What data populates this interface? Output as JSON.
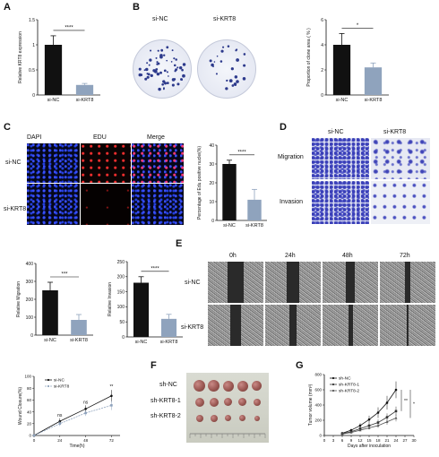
{
  "panel_letters": {
    "a": "A",
    "b": "B",
    "c": "C",
    "d": "D",
    "e": "E",
    "f": "F",
    "g": "G"
  },
  "groups": {
    "nc": "si-NC",
    "kd": "si-KRT8",
    "sh_nc": "sh-NC",
    "sh_1": "sh-KRT8-1",
    "sh_2": "sh-KRT8-2"
  },
  "panel_c": {
    "col_dapi": "DAPI",
    "col_edu": "EDU",
    "col_merge": "Merge"
  },
  "panel_d": {
    "row_migration": "Migration",
    "row_invasion": "Invasion"
  },
  "panel_e": {
    "t0": "0h",
    "t24": "24h",
    "t48": "48h",
    "t72": "72h"
  },
  "colors": {
    "nc": "#111111",
    "kd": "#8fa3bd",
    "dapi": "#2a44ff",
    "edu": "#ff2a2a"
  },
  "chart_data": [
    {
      "id": "A",
      "type": "bar",
      "categories": [
        "si-NC",
        "si-KRT8"
      ],
      "values": [
        1.0,
        0.2
      ],
      "errors": [
        0.18,
        0.03
      ],
      "ylabel": "Relative KRT8 expression",
      "ylim": [
        0,
        1.5
      ],
      "yticks": [
        0.0,
        0.5,
        1.0,
        1.5
      ],
      "significance": "****"
    },
    {
      "id": "B",
      "type": "bar",
      "categories": [
        "si-NC",
        "si-KRT8"
      ],
      "values": [
        4.0,
        2.2
      ],
      "errors": [
        0.9,
        0.35
      ],
      "ylabel": "Proportion of clone area ( % )",
      "ylim": [
        0,
        6
      ],
      "yticks": [
        0,
        2,
        4,
        6
      ],
      "significance": "*"
    },
    {
      "id": "C",
      "type": "bar",
      "categories": [
        "si-NC",
        "si-KRT8"
      ],
      "values": [
        30,
        11
      ],
      "errors": [
        2,
        5.5
      ],
      "ylabel": "Percentage of Edu positive nuclei(%)",
      "ylim": [
        0,
        40
      ],
      "yticks": [
        0,
        10,
        20,
        30,
        40
      ],
      "significance": "****"
    },
    {
      "id": "D1",
      "type": "bar",
      "categories": [
        "si-NC",
        "si-KRT8"
      ],
      "values": [
        250,
        85
      ],
      "errors": [
        45,
        30
      ],
      "ylabel": "Relative Migration",
      "ylim": [
        0,
        400
      ],
      "yticks": [
        0,
        100,
        200,
        300,
        400
      ],
      "significance": "***"
    },
    {
      "id": "D2",
      "type": "bar",
      "categories": [
        "si-NC",
        "si-KRT8"
      ],
      "values": [
        180,
        60
      ],
      "errors": [
        20,
        15
      ],
      "ylabel": "Relative Invasion",
      "ylim": [
        0,
        250
      ],
      "yticks": [
        0,
        50,
        100,
        150,
        200,
        250
      ],
      "significance": "****"
    },
    {
      "id": "E",
      "type": "line",
      "x": [
        0,
        24,
        48,
        72
      ],
      "xlabel": "Time(h)",
      "ylabel": "Wound Closure(%)",
      "ylim": [
        0,
        100
      ],
      "yticks": [
        0,
        20,
        40,
        60,
        80,
        100
      ],
      "series": [
        {
          "name": "si-NC",
          "values": [
            0,
            24,
            45,
            67
          ],
          "errors": [
            0,
            5,
            6,
            10
          ]
        },
        {
          "name": "si-KRT8",
          "values": [
            0,
            20,
            38,
            51
          ],
          "errors": [
            0,
            4,
            5,
            8
          ]
        }
      ],
      "annotations": [
        "ns",
        "ns",
        "**"
      ]
    },
    {
      "id": "G",
      "type": "line",
      "x": [
        6,
        9,
        12,
        15,
        18,
        21,
        24
      ],
      "xlabel": "Days after inoculation",
      "ylabel": "Tumor volume (mm³)",
      "ylim": [
        0,
        800
      ],
      "yticks": [
        0,
        200,
        400,
        600,
        800
      ],
      "xticks": [
        0,
        3,
        6,
        9,
        12,
        15,
        18,
        21,
        24,
        27,
        30
      ],
      "series": [
        {
          "name": "sh-NC",
          "values": [
            30,
            70,
            130,
            210,
            300,
            430,
            600
          ],
          "errors": [
            5,
            15,
            30,
            50,
            70,
            90,
            110
          ]
        },
        {
          "name": "sh-KRT8-1",
          "values": [
            25,
            50,
            90,
            130,
            170,
            240,
            320
          ],
          "errors": [
            5,
            10,
            20,
            30,
            40,
            50,
            60
          ]
        },
        {
          "name": "sh-KRT8-2",
          "values": [
            20,
            40,
            70,
            100,
            130,
            180,
            230
          ],
          "errors": [
            4,
            8,
            15,
            20,
            30,
            40,
            45
          ]
        }
      ],
      "annotations": [
        "**",
        "*"
      ]
    }
  ]
}
